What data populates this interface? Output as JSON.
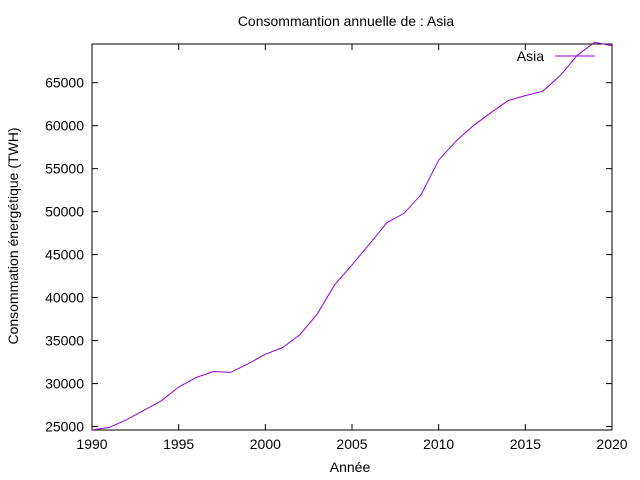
{
  "chart_data": {
    "type": "line",
    "title": "Consommantion annuelle de : Asia",
    "xlabel": "Année",
    "ylabel": "Consommation énergétique (TWH)",
    "xlim": [
      1990,
      2020
    ],
    "ylim": [
      24600,
      69500
    ],
    "xticks": [
      1990,
      1995,
      2000,
      2005,
      2010,
      2015,
      2020
    ],
    "yticks": [
      25000,
      30000,
      35000,
      40000,
      45000,
      50000,
      55000,
      60000,
      65000
    ],
    "grid": false,
    "legend_position": "top-right",
    "colors": {
      "series": "#9400d3",
      "axis": "#000000"
    },
    "series": [
      {
        "name": "Asia",
        "x": [
          1990,
          1991,
          1992,
          1993,
          1994,
          1995,
          1996,
          1997,
          1998,
          1999,
          2000,
          2001,
          2002,
          2003,
          2004,
          2005,
          2006,
          2007,
          2008,
          2009,
          2010,
          2011,
          2012,
          2013,
          2014,
          2015,
          2016,
          2017,
          2018,
          2019,
          2020
        ],
        "values": [
          24600,
          24900,
          25800,
          26900,
          28000,
          29600,
          30700,
          31400,
          31300,
          32300,
          33400,
          34200,
          35700,
          38100,
          41500,
          43800,
          46200,
          48700,
          49800,
          52000,
          56000,
          58200,
          60000,
          61500,
          62900,
          63500,
          64000,
          65800,
          68200,
          69700,
          69300
        ]
      }
    ]
  }
}
